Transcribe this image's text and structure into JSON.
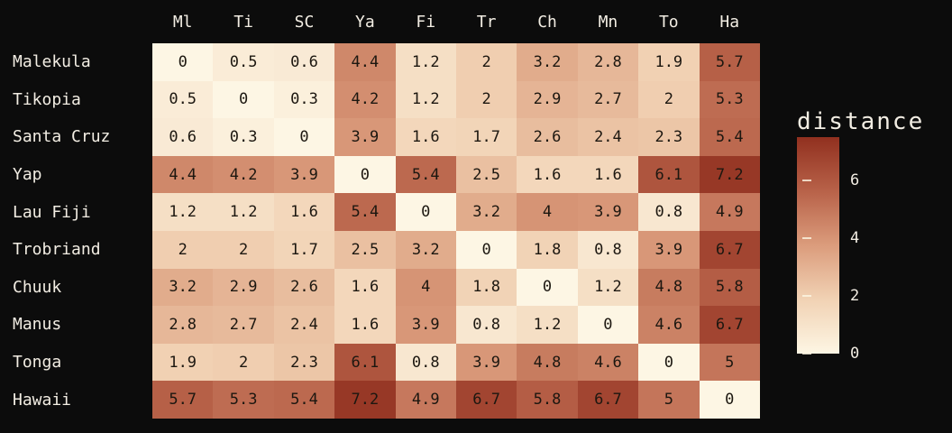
{
  "chart_data": {
    "type": "heatmap",
    "legend_title": "distance",
    "columns": [
      "Ml",
      "Ti",
      "SC",
      "Ya",
      "Fi",
      "Tr",
      "Ch",
      "Mn",
      "To",
      "Ha"
    ],
    "rows": [
      "Malekula",
      "Tikopia",
      "Santa Cruz",
      "Yap",
      "Lau Fiji",
      "Trobriand",
      "Chuuk",
      "Manus",
      "Tonga",
      "Hawaii"
    ],
    "values": [
      [
        0,
        0.5,
        0.6,
        4.4,
        1.2,
        2,
        3.2,
        2.8,
        1.9,
        5.7
      ],
      [
        0.5,
        0,
        0.3,
        4.2,
        1.2,
        2,
        2.9,
        2.7,
        2,
        5.3
      ],
      [
        0.6,
        0.3,
        0,
        3.9,
        1.6,
        1.7,
        2.6,
        2.4,
        2.3,
        5.4
      ],
      [
        4.4,
        4.2,
        3.9,
        0,
        5.4,
        2.5,
        1.6,
        1.6,
        6.1,
        7.2
      ],
      [
        1.2,
        1.2,
        1.6,
        5.4,
        0,
        3.2,
        4,
        3.9,
        0.8,
        4.9
      ],
      [
        2,
        2,
        1.7,
        2.5,
        3.2,
        0,
        1.8,
        0.8,
        3.9,
        6.7
      ],
      [
        3.2,
        2.9,
        2.6,
        1.6,
        4,
        1.8,
        0,
        1.2,
        4.8,
        5.8
      ],
      [
        2.8,
        2.7,
        2.4,
        1.6,
        3.9,
        0.8,
        1.2,
        0,
        4.6,
        6.7
      ],
      [
        1.9,
        2,
        2.3,
        6.1,
        0.8,
        3.9,
        4.8,
        4.6,
        0,
        5
      ],
      [
        5.7,
        5.3,
        5.4,
        7.2,
        4.9,
        6.7,
        5.8,
        6.7,
        5,
        0
      ]
    ],
    "colorbar_ticks": [
      0,
      2,
      4,
      6
    ],
    "color_scale": {
      "min": 0,
      "max": 7.5,
      "stops": [
        {
          "t": 0.0,
          "color": "#fdf6e4"
        },
        {
          "t": 0.25,
          "color": "#f1d2b4"
        },
        {
          "t": 0.5,
          "color": "#db9c7c"
        },
        {
          "t": 0.75,
          "color": "#b86249"
        },
        {
          "t": 1.0,
          "color": "#91301f"
        }
      ]
    },
    "colors": {
      "background": "#0c0c0c",
      "label_text": "#f2ede3",
      "cell_text": "#1c1710"
    }
  }
}
